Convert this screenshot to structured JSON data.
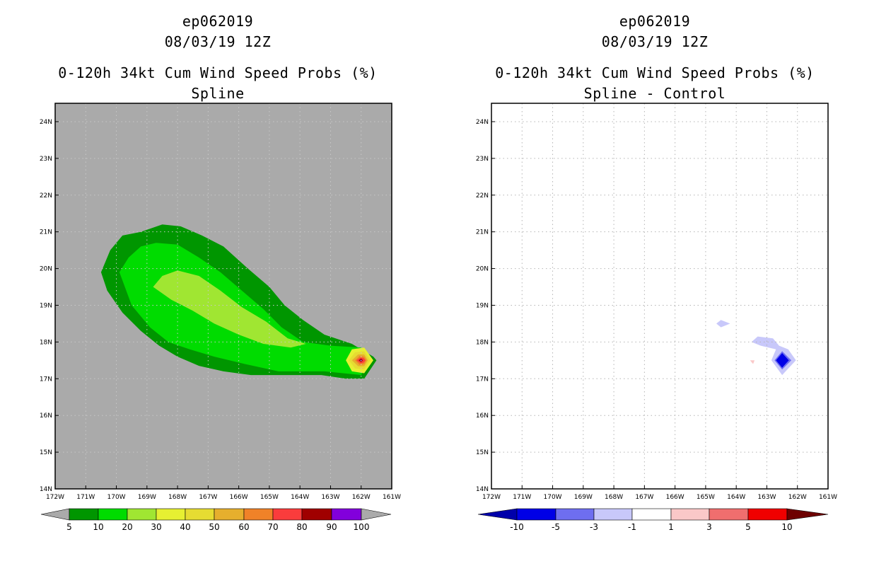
{
  "chart_data": [
    {
      "type": "heatmap",
      "name": "spline",
      "title_lines": [
        "ep062019",
        "08/03/19 12Z"
      ],
      "subtitle_lines": [
        "0-120h 34kt Cum Wind Speed Probs (%)",
        "Spline"
      ],
      "xlim": [
        -172,
        -161
      ],
      "ylim": [
        14,
        24.5
      ],
      "x_ticks": [
        -172,
        -171,
        -170,
        -169,
        -168,
        -167,
        -166,
        -165,
        -164,
        -163,
        -162,
        -161
      ],
      "x_tick_labels": [
        "172W",
        "171W",
        "170W",
        "169W",
        "168W",
        "167W",
        "166W",
        "165W",
        "164W",
        "163W",
        "162W",
        "161W"
      ],
      "y_ticks": [
        14,
        15,
        16,
        17,
        18,
        19,
        20,
        21,
        22,
        23,
        24
      ],
      "y_tick_labels": [
        "14N",
        "15N",
        "16N",
        "17N",
        "18N",
        "19N",
        "20N",
        "21N",
        "22N",
        "23N",
        "24N"
      ],
      "background": "#aaaaaa",
      "legend": {
        "labels": [
          "5",
          "10",
          "20",
          "30",
          "40",
          "50",
          "60",
          "70",
          "80",
          "90",
          "100"
        ],
        "colors": [
          "#009600",
          "#00dc00",
          "#a0e632",
          "#e6f032",
          "#e6dc32",
          "#e6af2d",
          "#f08228",
          "#fa3c3c",
          "#a00000",
          "#8200dc"
        ],
        "under_color": "#aaaaaa",
        "over_color": "#aaaaaa"
      },
      "contours": [
        {
          "level": 5,
          "color": "#009600",
          "points": [
            [
              -170.5,
              19.9
            ],
            [
              -170.2,
              20.5
            ],
            [
              -169.8,
              20.9
            ],
            [
              -169.2,
              21.0
            ],
            [
              -168.5,
              21.2
            ],
            [
              -167.9,
              21.15
            ],
            [
              -167.2,
              20.9
            ],
            [
              -166.5,
              20.6
            ],
            [
              -165.7,
              20.0
            ],
            [
              -165.0,
              19.5
            ],
            [
              -164.5,
              19.0
            ],
            [
              -163.9,
              18.6
            ],
            [
              -163.2,
              18.2
            ],
            [
              -162.3,
              17.95
            ],
            [
              -161.6,
              17.6
            ],
            [
              -161.5,
              17.5
            ],
            [
              -161.9,
              17.0
            ],
            [
              -162.5,
              17.0
            ],
            [
              -163.3,
              17.1
            ],
            [
              -164.7,
              17.1
            ],
            [
              -165.6,
              17.1
            ],
            [
              -166.5,
              17.2
            ],
            [
              -167.3,
              17.35
            ],
            [
              -168.0,
              17.6
            ],
            [
              -168.6,
              17.9
            ],
            [
              -169.2,
              18.3
            ],
            [
              -169.8,
              18.8
            ],
            [
              -170.3,
              19.4
            ]
          ]
        },
        {
          "level": 10,
          "color": "#00dc00",
          "points": [
            [
              -169.9,
              19.9
            ],
            [
              -169.6,
              20.3
            ],
            [
              -169.2,
              20.6
            ],
            [
              -168.7,
              20.7
            ],
            [
              -168.0,
              20.65
            ],
            [
              -167.3,
              20.3
            ],
            [
              -166.6,
              19.9
            ],
            [
              -165.9,
              19.4
            ],
            [
              -165.2,
              18.9
            ],
            [
              -164.6,
              18.4
            ],
            [
              -163.9,
              18.0
            ],
            [
              -163.0,
              17.9
            ],
            [
              -162.0,
              17.85
            ],
            [
              -161.7,
              17.5
            ],
            [
              -162.0,
              17.1
            ],
            [
              -163.2,
              17.2
            ],
            [
              -164.7,
              17.2
            ],
            [
              -165.8,
              17.4
            ],
            [
              -166.8,
              17.6
            ],
            [
              -167.6,
              17.8
            ],
            [
              -168.3,
              18.0
            ],
            [
              -168.9,
              18.4
            ],
            [
              -169.5,
              19.0
            ]
          ]
        },
        {
          "level": 20,
          "color": "#a0e632",
          "points": [
            [
              -168.8,
              19.5
            ],
            [
              -168.5,
              19.8
            ],
            [
              -168.0,
              19.95
            ],
            [
              -167.3,
              19.8
            ],
            [
              -166.6,
              19.4
            ],
            [
              -165.9,
              18.95
            ],
            [
              -165.1,
              18.55
            ],
            [
              -164.4,
              18.1
            ],
            [
              -163.8,
              17.95
            ],
            [
              -164.3,
              17.85
            ],
            [
              -165.2,
              17.95
            ],
            [
              -166.0,
              18.2
            ],
            [
              -166.8,
              18.5
            ],
            [
              -167.5,
              18.85
            ],
            [
              -168.2,
              19.15
            ]
          ]
        },
        {
          "level": 30,
          "color": "#e6f032",
          "points": [
            [
              -162.5,
              17.5
            ],
            [
              -162.3,
              17.8
            ],
            [
              -161.9,
              17.85
            ],
            [
              -161.6,
              17.5
            ],
            [
              -161.9,
              17.15
            ],
            [
              -162.3,
              17.2
            ]
          ]
        },
        {
          "level": 40,
          "color": "#e6dc32",
          "points": [
            [
              -162.4,
              17.5
            ],
            [
              -162.2,
              17.72
            ],
            [
              -161.9,
              17.75
            ],
            [
              -161.7,
              17.5
            ],
            [
              -161.9,
              17.25
            ],
            [
              -162.2,
              17.28
            ]
          ]
        },
        {
          "level": 50,
          "color": "#e6af2d",
          "points": [
            [
              -162.3,
              17.5
            ],
            [
              -162.1,
              17.66
            ],
            [
              -161.9,
              17.66
            ],
            [
              -161.78,
              17.5
            ],
            [
              -161.9,
              17.34
            ],
            [
              -162.1,
              17.34
            ]
          ]
        },
        {
          "level": 60,
          "color": "#f08228",
          "points": [
            [
              -162.2,
              17.5
            ],
            [
              -162.05,
              17.62
            ],
            [
              -161.9,
              17.6
            ],
            [
              -161.83,
              17.5
            ],
            [
              -161.9,
              17.4
            ],
            [
              -162.05,
              17.38
            ]
          ]
        },
        {
          "level": 70,
          "color": "#fa3c3c",
          "points": [
            [
              -162.15,
              17.5
            ],
            [
              -162.02,
              17.58
            ],
            [
              -161.92,
              17.56
            ],
            [
              -161.86,
              17.5
            ],
            [
              -161.92,
              17.44
            ],
            [
              -162.02,
              17.42
            ]
          ]
        },
        {
          "level": 80,
          "color": "#a00000",
          "points": [
            [
              -162.08,
              17.5
            ],
            [
              -162.0,
              17.55
            ],
            [
              -161.94,
              17.5
            ],
            [
              -162.0,
              17.45
            ]
          ]
        },
        {
          "level": 90,
          "color": "#8200dc",
          "points": [
            [
              -162.04,
              17.5
            ],
            [
              -162.0,
              17.52
            ],
            [
              -161.97,
              17.5
            ],
            [
              -162.0,
              17.48
            ]
          ]
        }
      ]
    },
    {
      "type": "heatmap",
      "name": "spline-minus-control",
      "title_lines": [
        "ep062019",
        "08/03/19 12Z"
      ],
      "subtitle_lines": [
        "0-120h 34kt Cum Wind Speed Probs (%)",
        "Spline - Control"
      ],
      "xlim": [
        -172,
        -161
      ],
      "ylim": [
        14,
        24.5
      ],
      "x_ticks": [
        -172,
        -171,
        -170,
        -169,
        -168,
        -167,
        -166,
        -165,
        -164,
        -163,
        -162,
        -161
      ],
      "x_tick_labels": [
        "172W",
        "171W",
        "170W",
        "169W",
        "168W",
        "167W",
        "166W",
        "165W",
        "164W",
        "163W",
        "162W",
        "161W"
      ],
      "y_ticks": [
        14,
        15,
        16,
        17,
        18,
        19,
        20,
        21,
        22,
        23,
        24
      ],
      "y_tick_labels": [
        "14N",
        "15N",
        "16N",
        "17N",
        "18N",
        "19N",
        "20N",
        "21N",
        "22N",
        "23N",
        "24N"
      ],
      "background": "#ffffff",
      "grid": true,
      "legend": {
        "labels": [
          "-10",
          "-5",
          "-3",
          "-1",
          "1",
          "3",
          "5",
          "10"
        ],
        "colors": [
          "#0000e6",
          "#6e6ef0",
          "#c8c8fa",
          "#ffffff",
          "#fac8c8",
          "#f06e6e",
          "#f00000"
        ],
        "under_color": "#0000aa",
        "over_color": "#6e0000"
      },
      "contours": [
        {
          "level": -1,
          "color": "#c8c8fa",
          "points": [
            [
              -164.65,
              18.5
            ],
            [
              -164.5,
              18.6
            ],
            [
              -164.2,
              18.5
            ],
            [
              -164.5,
              18.4
            ]
          ]
        },
        {
          "level": -1,
          "color": "#c8c8fa",
          "points": [
            [
              -163.5,
              18.0
            ],
            [
              -163.3,
              18.15
            ],
            [
              -162.8,
              18.1
            ],
            [
              -162.6,
              17.9
            ],
            [
              -162.3,
              17.8
            ],
            [
              -162.05,
              17.5
            ],
            [
              -162.5,
              17.1
            ],
            [
              -162.85,
              17.5
            ],
            [
              -162.7,
              17.8
            ],
            [
              -163.2,
              17.9
            ]
          ]
        },
        {
          "level": -3,
          "color": "#6e6ef0",
          "points": [
            [
              -162.75,
              17.5
            ],
            [
              -162.5,
              17.75
            ],
            [
              -162.2,
              17.5
            ],
            [
              -162.5,
              17.25
            ]
          ]
        },
        {
          "level": -5,
          "color": "#0000e6",
          "points": [
            [
              -162.7,
              17.5
            ],
            [
              -162.5,
              17.7
            ],
            [
              -162.28,
              17.5
            ],
            [
              -162.5,
              17.3
            ]
          ]
        },
        {
          "level": 1,
          "color": "#fac8c8",
          "points": [
            [
              -163.55,
              17.5
            ],
            [
              -163.4,
              17.5
            ],
            [
              -163.45,
              17.4
            ]
          ]
        }
      ]
    }
  ]
}
